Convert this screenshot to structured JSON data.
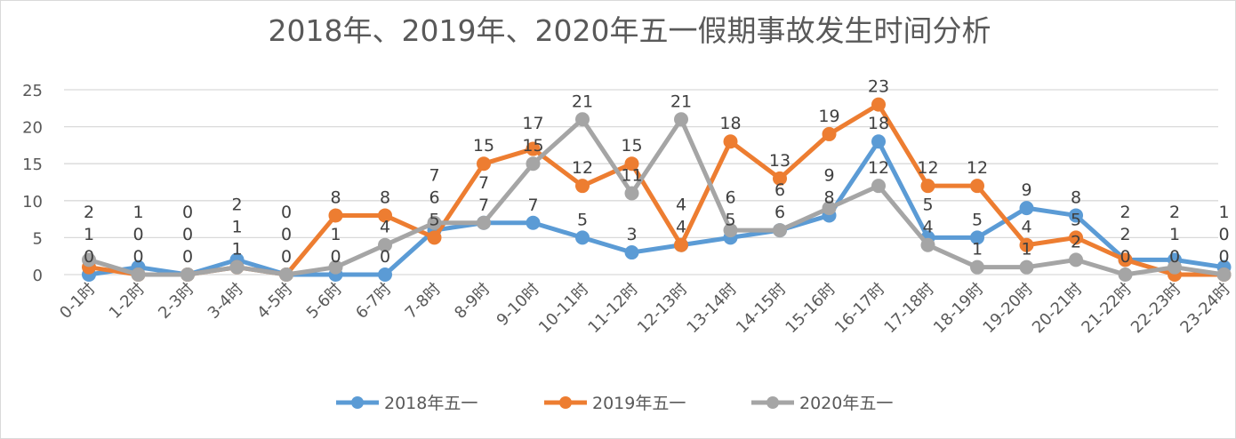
{
  "chart_data": {
    "type": "line",
    "title": "2018年、2019年、2020年五一假期事故发生时间分析",
    "xlabel": "",
    "ylabel": "",
    "ylim": [
      0,
      25
    ],
    "yticks": [
      "0",
      "5",
      "10",
      "15",
      "20",
      "25"
    ],
    "grid": true,
    "legend_position": "bottom",
    "categories": [
      "0-1时",
      "1-2时",
      "2-3时",
      "3-4时",
      "4-5时",
      "5-6时",
      "6-7时",
      "7-8时",
      "8-9时",
      "9-10时",
      "10-11时",
      "11-12时",
      "12-13时",
      "13-14时",
      "14-15时",
      "15-16时",
      "16-17时",
      "17-18时",
      "18-19时",
      "19-20时",
      "20-21时",
      "21-22时",
      "22-23时",
      "23-24时"
    ],
    "series": [
      {
        "name": "2018年五一",
        "color": "#5b9bd5",
        "values": [
          0,
          1,
          0,
          2,
          0,
          0,
          0,
          6,
          7,
          7,
          5,
          3,
          4,
          5,
          6,
          8,
          18,
          5,
          5,
          9,
          8,
          2,
          2,
          1
        ]
      },
      {
        "name": "2019年五一",
        "color": "#ed7d31",
        "values": [
          1,
          0,
          0,
          1,
          0,
          8,
          8,
          5,
          15,
          17,
          12,
          15,
          4,
          18,
          13,
          19,
          23,
          12,
          12,
          4,
          5,
          2,
          0,
          0
        ]
      },
      {
        "name": "2020年五一",
        "color": "#a5a5a5",
        "values": [
          2,
          0,
          0,
          1,
          0,
          1,
          4,
          7,
          7,
          15,
          21,
          11,
          21,
          6,
          6,
          9,
          12,
          4,
          1,
          1,
          2,
          0,
          1,
          0
        ]
      }
    ]
  }
}
